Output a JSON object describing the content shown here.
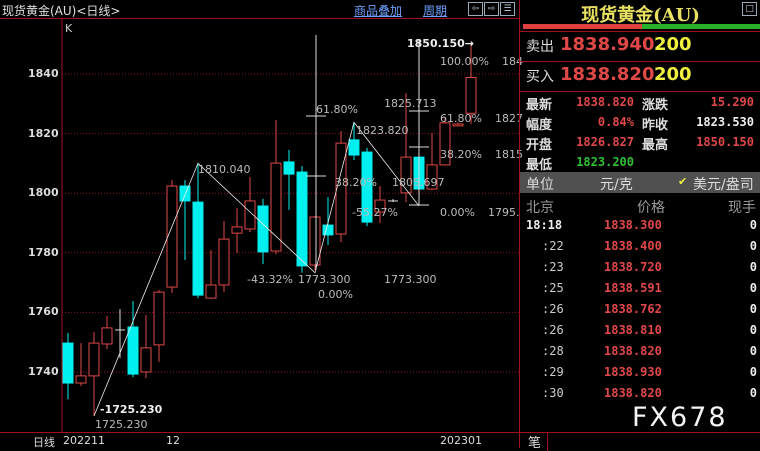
{
  "header": {
    "title": "现货黄金(AU)<日线>",
    "overlay_link": "商品叠加",
    "period_link": "周期",
    "nav_icons": [
      "arrow-left-icon",
      "arrow-right-icon",
      "split-panel-icon"
    ]
  },
  "chart": {
    "indicator_label": "K",
    "y_ticks": [
      "1840",
      "1820",
      "1800",
      "1780",
      "1760",
      "1740"
    ],
    "x_period_label": "日线",
    "x_ticks": [
      "202211",
      "12",
      "202301"
    ],
    "annotations": [
      "1850.150→",
      "100.00%",
      "184",
      "1825.713",
      "61.80%",
      "1827",
      "38.20%",
      "1815",
      "1805.697",
      "0.00%",
      "1795.",
      "61.80%",
      "1823.820",
      "38.20%",
      "-55.27%",
      "1773.300",
      "0.00%",
      "1773.300",
      "-43.32%",
      "1810.040",
      "-1725.230",
      "1725.230"
    ]
  },
  "chart_data": {
    "type": "candlestick",
    "y_ticks": [
      1740,
      1760,
      1780,
      1800,
      1820,
      1840
    ],
    "up_color": "#e04848",
    "down_color": "#00f0f0",
    "grid": "dotted-horizontal",
    "candles": [
      [
        1749.7,
        1753.1,
        1730.9,
        1736.3
      ],
      [
        1736.3,
        1749.7,
        1735.3,
        1738.7
      ],
      [
        1738.7,
        1753.4,
        1725.23,
        1749.7
      ],
      [
        1749.4,
        1758.8,
        1747.7,
        1754.8
      ],
      [
        1754.1,
        1761.1,
        1744.7,
        1754.1
      ],
      [
        1755.1,
        1763.8,
        1738.3,
        1739.3
      ],
      [
        1740.0,
        1759.1,
        1738.0,
        1748.1
      ],
      [
        1749.1,
        1767.5,
        1743.4,
        1766.8
      ],
      [
        1768.5,
        1804.4,
        1766.5,
        1802.4
      ],
      [
        1802.4,
        1804.4,
        1777.6,
        1797.4
      ],
      [
        1797.0,
        1810.04,
        1764.8,
        1765.8
      ],
      [
        1764.8,
        1780.9,
        1764.5,
        1769.2
      ],
      [
        1769.2,
        1790.7,
        1766.8,
        1784.6
      ],
      [
        1786.6,
        1795.0,
        1779.9,
        1788.7
      ],
      [
        1788.0,
        1805.4,
        1787.0,
        1797.4
      ],
      [
        1795.7,
        1798.1,
        1776.2,
        1780.3
      ],
      [
        1780.6,
        1824.6,
        1779.6,
        1810.1
      ],
      [
        1810.5,
        1814.5,
        1794.4,
        1806.4
      ],
      [
        1807.1,
        1809.1,
        1773.3,
        1775.6
      ],
      [
        1775.9,
        1792.3,
        1774.2,
        1792.0
      ],
      [
        1789.3,
        1798.7,
        1782.6,
        1786.0
      ],
      [
        1786.3,
        1820.9,
        1783.6,
        1816.8
      ],
      [
        1817.9,
        1823.82,
        1811.1,
        1812.8
      ],
      [
        1813.8,
        1815.2,
        1789.0,
        1790.3
      ],
      [
        1793.7,
        1802.4,
        1790.0,
        1797.7
      ],
      [
        1797.4,
        1798.0,
        1797.0,
        1797.4
      ],
      [
        1800.1,
        1833.6,
        1797.0,
        1812.1
      ],
      [
        1812.1,
        1815.5,
        1798.7,
        1801.4
      ],
      [
        1801.4,
        1820.2,
        1801.1,
        1809.5
      ],
      [
        1809.5,
        1825.6,
        1809.5,
        1823.6
      ],
      [
        1822.6,
        1823.8,
        1822.4,
        1823.2
      ],
      [
        1826.827,
        1850.15,
        1823.2,
        1838.82
      ]
    ],
    "zigzag": [
      [
        2,
        1725.23
      ],
      [
        10,
        1810.04
      ],
      [
        19,
        1773.3
      ],
      [
        22,
        1823.82
      ],
      [
        27,
        1795.7
      ]
    ]
  },
  "panel": {
    "title": "现货黄金(AU)",
    "sell_label": "卖出",
    "sell_price": "1838.940",
    "sell_vol": "200",
    "buy_label": "买入",
    "buy_price": "1838.820",
    "buy_vol": "200",
    "bid_ask_ratio": 0.5,
    "stats": [
      {
        "l": "最新",
        "v": "1838.820",
        "c": "red"
      },
      {
        "l": "涨跌",
        "v": "15.290",
        "c": "red"
      },
      {
        "l": "幅度",
        "v": "0.84%",
        "c": "red"
      },
      {
        "l": "昨收",
        "v": "1823.530",
        "c": "wht"
      },
      {
        "l": "开盘",
        "v": "1826.827",
        "c": "red"
      },
      {
        "l": "最高",
        "v": "1850.150",
        "c": "red"
      },
      {
        "l": "最低",
        "v": "1823.200",
        "c": "grn"
      }
    ],
    "unit_label": "单位",
    "unit_cny": "元/克",
    "unit_usd": "美元/盎司",
    "unit_check": "✔",
    "tick_headers": [
      "北京",
      "价格",
      "现手"
    ],
    "ticks": [
      [
        "18:18",
        "1838.300",
        "0"
      ],
      [
        ":22",
        "1838.400",
        "0"
      ],
      [
        ":23",
        "1838.720",
        "0"
      ],
      [
        ":25",
        "1838.591",
        "0"
      ],
      [
        ":26",
        "1838.762",
        "0"
      ],
      [
        ":26",
        "1838.810",
        "0"
      ],
      [
        ":28",
        "1838.820",
        "0"
      ],
      [
        ":29",
        "1838.930",
        "0"
      ],
      [
        ":30",
        "1838.820",
        "0"
      ]
    ],
    "tab_label": "笔",
    "watermark": "FX678"
  }
}
